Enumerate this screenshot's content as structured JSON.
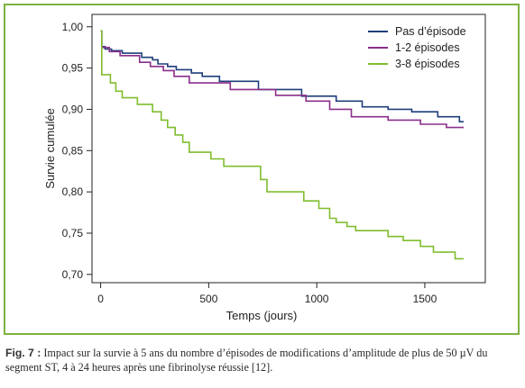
{
  "chart_data": {
    "type": "line",
    "step": true,
    "xlabel": "Temps (jours)",
    "ylabel": "Survie cumulée",
    "xlim": [
      -40,
      1780
    ],
    "ylim": [
      0.69,
      1.015
    ],
    "xticks": [
      0,
      500,
      1000,
      1500
    ],
    "xtick_labels": [
      "0",
      "500",
      "1000",
      "1500"
    ],
    "yticks": [
      0.7,
      0.75,
      0.8,
      0.85,
      0.9,
      0.95,
      1.0
    ],
    "ytick_labels": [
      "0,70",
      "0,75",
      "0,80",
      "0,85",
      "0,90",
      "0,95",
      "1,00"
    ],
    "grid": false,
    "legend_position": "top-right",
    "series": [
      {
        "name": "Pas d’épisode",
        "color": "#1f3f7a",
        "x": [
          0,
          5,
          20,
          50,
          100,
          190,
          240,
          265,
          310,
          350,
          420,
          470,
          550,
          730,
          930,
          1090,
          1210,
          1330,
          1440,
          1560,
          1660,
          1680
        ],
        "y": [
          0.995,
          0.976,
          0.973,
          0.971,
          0.968,
          0.963,
          0.96,
          0.955,
          0.952,
          0.948,
          0.944,
          0.94,
          0.934,
          0.924,
          0.916,
          0.91,
          0.903,
          0.9,
          0.897,
          0.891,
          0.885,
          0.885
        ]
      },
      {
        "name": "1-2 épisodes",
        "color": "#8a2e8a",
        "x": [
          0,
          5,
          40,
          90,
          180,
          230,
          290,
          340,
          410,
          600,
          810,
          950,
          1060,
          1160,
          1330,
          1480,
          1600,
          1680
        ],
        "y": [
          0.995,
          0.975,
          0.97,
          0.965,
          0.957,
          0.952,
          0.947,
          0.94,
          0.932,
          0.924,
          0.917,
          0.91,
          0.9,
          0.891,
          0.887,
          0.882,
          0.878,
          0.878
        ]
      },
      {
        "name": "3-8 épisodes",
        "color": "#80bd2e",
        "x": [
          0,
          5,
          45,
          70,
          100,
          170,
          240,
          280,
          310,
          345,
          380,
          410,
          510,
          570,
          740,
          770,
          940,
          1010,
          1060,
          1090,
          1140,
          1180,
          1330,
          1400,
          1480,
          1540,
          1640,
          1680
        ],
        "y": [
          0.995,
          0.942,
          0.932,
          0.922,
          0.914,
          0.906,
          0.897,
          0.887,
          0.878,
          0.869,
          0.86,
          0.848,
          0.84,
          0.831,
          0.815,
          0.8,
          0.789,
          0.78,
          0.768,
          0.763,
          0.758,
          0.753,
          0.746,
          0.741,
          0.734,
          0.727,
          0.719,
          0.719
        ]
      }
    ]
  },
  "caption": {
    "label": "Fig. 7 :",
    "text": " Impact sur la survie à 5 ans du nombre d’épisodes de modifications d’amplitude de plus de 50 µV du segment ST, 4 à 24 heures après une fibrinolyse réussie [12]."
  }
}
